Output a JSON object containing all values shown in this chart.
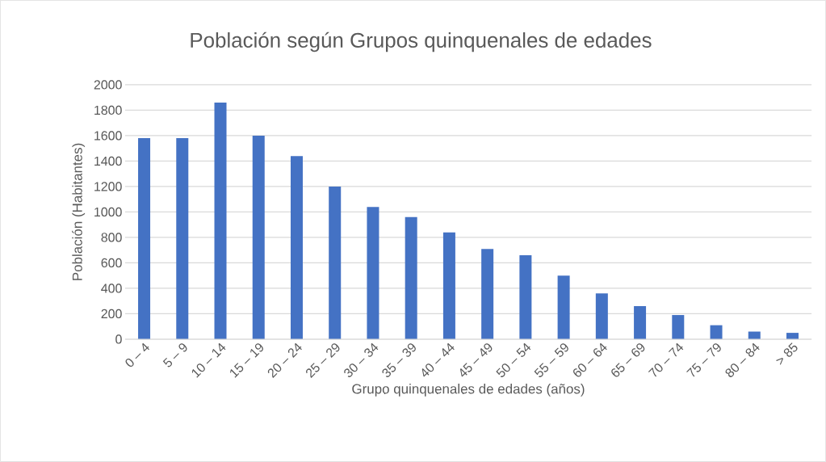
{
  "chart_data": {
    "type": "bar",
    "title": "Población según Grupos quinquenales de edades",
    "xlabel": "Grupo quinquenales de edades (años)",
    "ylabel": "Población (Habitantes)",
    "categories": [
      "0 – 4",
      "5 – 9",
      "10 – 14",
      "15 – 19",
      "20 – 24",
      "25 – 29",
      "30 – 34",
      "35 – 39",
      "40 – 44",
      "45 – 49",
      "50 – 54",
      "55 – 59",
      "60 – 64",
      "65 – 69",
      "70 – 74",
      "75 – 79",
      "80 – 84",
      "> 85"
    ],
    "values": [
      1580,
      1580,
      1860,
      1600,
      1440,
      1200,
      1040,
      960,
      840,
      710,
      660,
      500,
      360,
      260,
      190,
      110,
      60,
      50
    ],
    "color": "#4472c4",
    "ylim": [
      0,
      2000
    ],
    "yticks": [
      0,
      200,
      400,
      600,
      800,
      1000,
      1200,
      1400,
      1600,
      1800,
      2000
    ],
    "grid": "y"
  }
}
